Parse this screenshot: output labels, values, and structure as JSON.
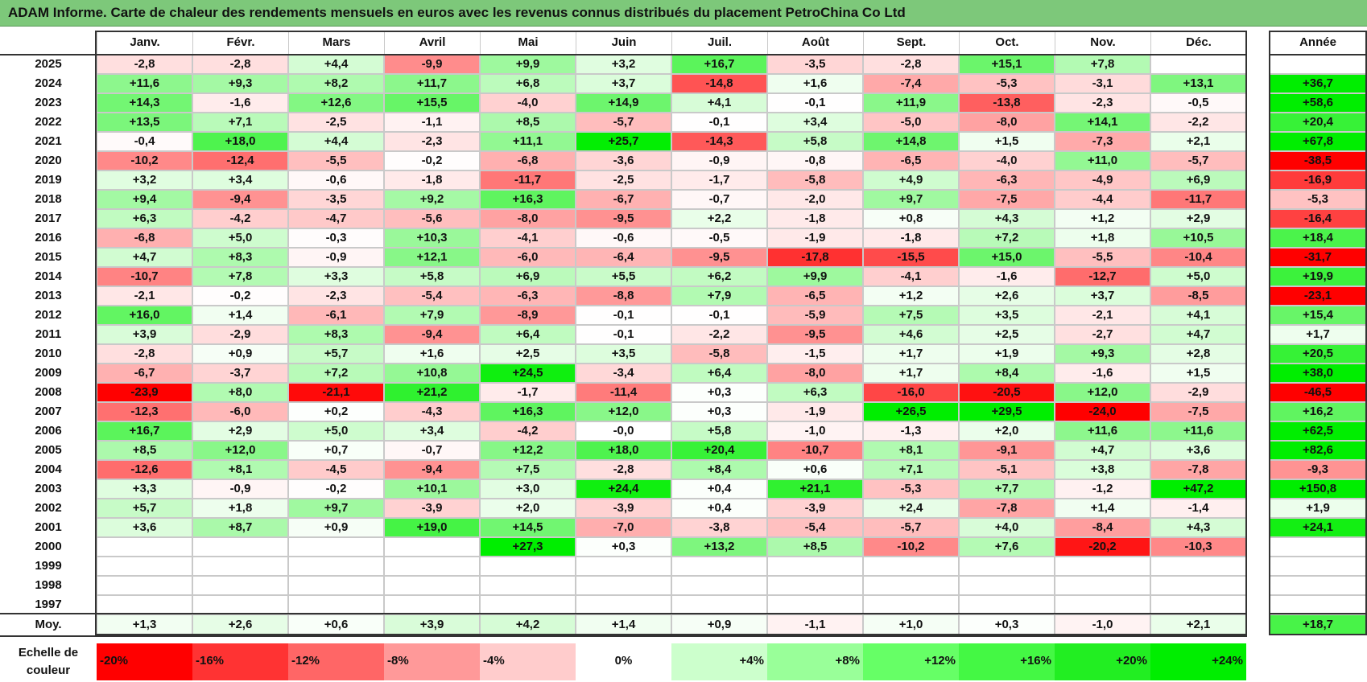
{
  "title": "ADAM Informe. Carte de chaleur des rendements mensuels en euros avec les revenus connus distribués du placement PetroChina Co Ltd",
  "colors": {
    "title_bar": "#7dc87a",
    "negative": "#ff0000",
    "positive": "#00ee00",
    "neutral": "#ffffff"
  },
  "chart_data": {
    "type": "heatmap",
    "title": "ADAM Informe. Carte de chaleur des rendements mensuels en euros avec les revenus connus distribués du placement PetroChina Co Ltd",
    "months": [
      "Janv.",
      "Févr.",
      "Mars",
      "Avril",
      "Mai",
      "Juin",
      "Juil.",
      "Août",
      "Sept.",
      "Oct.",
      "Nov.",
      "Déc."
    ],
    "year_column_label": "Année",
    "rows": [
      {
        "year": "2025",
        "values": [
          "-2,8",
          "-2,8",
          "+4,4",
          "-9,9",
          "+9,9",
          "+3,2",
          "+16,7",
          "-3,5",
          "-2,8",
          "+15,1",
          "+7,8",
          ""
        ],
        "annual": ""
      },
      {
        "year": "2024",
        "values": [
          "+11,6",
          "+9,3",
          "+8,2",
          "+11,7",
          "+6,8",
          "+3,7",
          "-14,8",
          "+1,6",
          "-7,4",
          "-5,3",
          "-3,1",
          "+13,1"
        ],
        "annual": "+36,7"
      },
      {
        "year": "2023",
        "values": [
          "+14,3",
          "-1,6",
          "+12,6",
          "+15,5",
          "-4,0",
          "+14,9",
          "+4,1",
          "-0,1",
          "+11,9",
          "-13,8",
          "-2,3",
          "-0,5"
        ],
        "annual": "+58,6"
      },
      {
        "year": "2022",
        "values": [
          "+13,5",
          "+7,1",
          "-2,5",
          "-1,1",
          "+8,5",
          "-5,7",
          "-0,1",
          "+3,4",
          "-5,0",
          "-8,0",
          "+14,1",
          "-2,2"
        ],
        "annual": "+20,4"
      },
      {
        "year": "2021",
        "values": [
          "-0,4",
          "+18,0",
          "+4,4",
          "-2,3",
          "+11,1",
          "+25,7",
          "-14,3",
          "+5,8",
          "+14,8",
          "+1,5",
          "-7,3",
          "+2,1"
        ],
        "annual": "+67,8"
      },
      {
        "year": "2020",
        "values": [
          "-10,2",
          "-12,4",
          "-5,5",
          "-0,2",
          "-6,8",
          "-3,6",
          "-0,9",
          "-0,8",
          "-6,5",
          "-4,0",
          "+11,0",
          "-5,7"
        ],
        "annual": "-38,5"
      },
      {
        "year": "2019",
        "values": [
          "+3,2",
          "+3,4",
          "-0,6",
          "-1,8",
          "-11,7",
          "-2,5",
          "-1,7",
          "-5,8",
          "+4,9",
          "-6,3",
          "-4,9",
          "+6,9"
        ],
        "annual": "-16,9"
      },
      {
        "year": "2018",
        "values": [
          "+9,4",
          "-9,4",
          "-3,5",
          "+9,2",
          "+16,3",
          "-6,7",
          "-0,7",
          "-2,0",
          "+9,7",
          "-7,5",
          "-4,4",
          "-11,7"
        ],
        "annual": "-5,3"
      },
      {
        "year": "2017",
        "values": [
          "+6,3",
          "-4,2",
          "-4,7",
          "-5,6",
          "-8,0",
          "-9,5",
          "+2,2",
          "-1,8",
          "+0,8",
          "+4,3",
          "+1,2",
          "+2,9"
        ],
        "annual": "-16,4"
      },
      {
        "year": "2016",
        "values": [
          "-6,8",
          "+5,0",
          "-0,3",
          "+10,3",
          "-4,1",
          "-0,6",
          "-0,5",
          "-1,9",
          "-1,8",
          "+7,2",
          "+1,8",
          "+10,5"
        ],
        "annual": "+18,4"
      },
      {
        "year": "2015",
        "values": [
          "+4,7",
          "+8,3",
          "-0,9",
          "+12,1",
          "-6,0",
          "-6,4",
          "-9,5",
          "-17,8",
          "-15,5",
          "+15,0",
          "-5,5",
          "-10,4"
        ],
        "annual": "-31,7"
      },
      {
        "year": "2014",
        "values": [
          "-10,7",
          "+7,8",
          "+3,3",
          "+5,8",
          "+6,9",
          "+5,5",
          "+6,2",
          "+9,9",
          "-4,1",
          "-1,6",
          "-12,7",
          "+5,0"
        ],
        "annual": "+19,9"
      },
      {
        "year": "2013",
        "values": [
          "-2,1",
          "-0,2",
          "-2,3",
          "-5,4",
          "-6,3",
          "-8,8",
          "+7,9",
          "-6,5",
          "+1,2",
          "+2,6",
          "+3,7",
          "-8,5"
        ],
        "annual": "-23,1"
      },
      {
        "year": "2012",
        "values": [
          "+16,0",
          "+1,4",
          "-6,1",
          "+7,9",
          "-8,9",
          "-0,1",
          "-0,1",
          "-5,9",
          "+7,5",
          "+3,5",
          "-2,1",
          "+4,1"
        ],
        "annual": "+15,4"
      },
      {
        "year": "2011",
        "values": [
          "+3,9",
          "-2,9",
          "+8,3",
          "-9,4",
          "+6,4",
          "-0,1",
          "-2,2",
          "-9,5",
          "+4,6",
          "+2,5",
          "-2,7",
          "+4,7"
        ],
        "annual": "+1,7"
      },
      {
        "year": "2010",
        "values": [
          "-2,8",
          "+0,9",
          "+5,7",
          "+1,6",
          "+2,5",
          "+3,5",
          "-5,8",
          "-1,5",
          "+1,7",
          "+1,9",
          "+9,3",
          "+2,8"
        ],
        "annual": "+20,5"
      },
      {
        "year": "2009",
        "values": [
          "-6,7",
          "-3,7",
          "+7,2",
          "+10,8",
          "+24,5",
          "-3,4",
          "+6,4",
          "-8,0",
          "+1,7",
          "+8,4",
          "-1,6",
          "+1,5"
        ],
        "annual": "+38,0"
      },
      {
        "year": "2008",
        "values": [
          "-23,9",
          "+8,0",
          "-21,1",
          "+21,2",
          "-1,7",
          "-11,4",
          "+0,3",
          "+6,3",
          "-16,0",
          "-20,5",
          "+12,0",
          "-2,9"
        ],
        "annual": "-46,5"
      },
      {
        "year": "2007",
        "values": [
          "-12,3",
          "-6,0",
          "+0,2",
          "-4,3",
          "+16,3",
          "+12,0",
          "+0,3",
          "-1,9",
          "+26,5",
          "+29,5",
          "-24,0",
          "-7,5"
        ],
        "annual": "+16,2"
      },
      {
        "year": "2006",
        "values": [
          "+16,7",
          "+2,9",
          "+5,0",
          "+3,4",
          "-4,2",
          "-0,0",
          "+5,8",
          "-1,0",
          "-1,3",
          "+2,0",
          "+11,6",
          "+11,6"
        ],
        "annual": "+62,5"
      },
      {
        "year": "2005",
        "values": [
          "+8,5",
          "+12,0",
          "+0,7",
          "-0,7",
          "+12,2",
          "+18,0",
          "+20,4",
          "-10,7",
          "+8,1",
          "-9,1",
          "+4,7",
          "+3,6"
        ],
        "annual": "+82,6"
      },
      {
        "year": "2004",
        "values": [
          "-12,6",
          "+8,1",
          "-4,5",
          "-9,4",
          "+7,5",
          "-2,8",
          "+8,4",
          "+0,6",
          "+7,1",
          "-5,1",
          "+3,8",
          "-7,8"
        ],
        "annual": "-9,3"
      },
      {
        "year": "2003",
        "values": [
          "+3,3",
          "-0,9",
          "-0,2",
          "+10,1",
          "+3,0",
          "+24,4",
          "+0,4",
          "+21,1",
          "-5,3",
          "+7,7",
          "-1,2",
          "+47,2"
        ],
        "annual": "+150,8"
      },
      {
        "year": "2002",
        "values": [
          "+5,7",
          "+1,8",
          "+9,7",
          "-3,9",
          "+2,0",
          "-3,9",
          "+0,4",
          "-3,9",
          "+2,4",
          "-7,8",
          "+1,4",
          "-1,4"
        ],
        "annual": "+1,9"
      },
      {
        "year": "2001",
        "values": [
          "+3,6",
          "+8,7",
          "+0,9",
          "+19,0",
          "+14,5",
          "-7,0",
          "-3,8",
          "-5,4",
          "-5,7",
          "+4,0",
          "-8,4",
          "+4,3"
        ],
        "annual": "+24,1"
      },
      {
        "year": "2000",
        "values": [
          "",
          "",
          "",
          "",
          "+27,3",
          "+0,3",
          "+13,2",
          "+8,5",
          "-10,2",
          "+7,6",
          "-20,2",
          "-10,3"
        ],
        "annual": ""
      },
      {
        "year": "1999",
        "values": [
          "",
          "",
          "",
          "",
          "",
          "",
          "",
          "",
          "",
          "",
          "",
          ""
        ],
        "annual": ""
      },
      {
        "year": "1998",
        "values": [
          "",
          "",
          "",
          "",
          "",
          "",
          "",
          "",
          "",
          "",
          "",
          ""
        ],
        "annual": ""
      },
      {
        "year": "1997",
        "values": [
          "",
          "",
          "",
          "",
          "",
          "",
          "",
          "",
          "",
          "",
          "",
          ""
        ],
        "annual": ""
      }
    ],
    "average": {
      "label": "Moy.",
      "values": [
        "+1,3",
        "+2,6",
        "+0,6",
        "+3,9",
        "+4,2",
        "+1,4",
        "+0,9",
        "-1,1",
        "+1,0",
        "+0,3",
        "-1,0",
        "+2,1"
      ],
      "annual": "+18,7"
    },
    "color_scale": {
      "label": "Echelle de couleur",
      "stops": [
        "-20%",
        "-16%",
        "-12%",
        "-8%",
        "-4%",
        "0%",
        "+4%",
        "+8%",
        "+12%",
        "+16%",
        "+20%",
        "+24%"
      ],
      "stop_values": [
        -20,
        -16,
        -12,
        -8,
        -4,
        0,
        4,
        8,
        12,
        16,
        20,
        24
      ],
      "stop_colors": [
        "#ff0000",
        "#ff3333",
        "#ff6666",
        "#ff9999",
        "#ffcccc",
        "#ffffff",
        "#ccffcc",
        "#99ff99",
        "#66ff66",
        "#44f844",
        "#22ee22",
        "#00ee00"
      ]
    }
  }
}
